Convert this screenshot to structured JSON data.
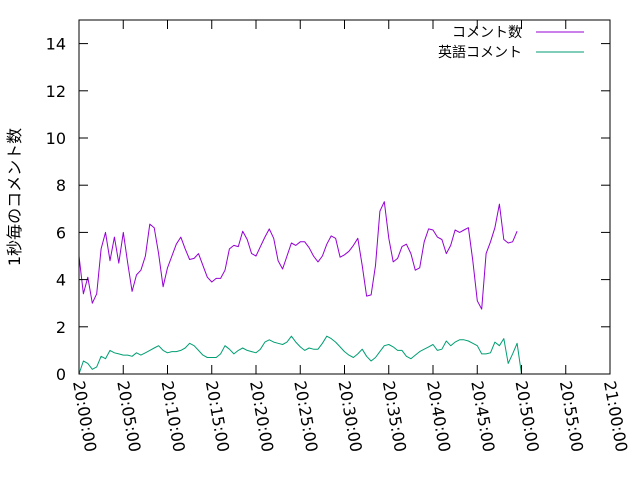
{
  "chart_data": {
    "type": "line",
    "title": "",
    "xlabel": "",
    "ylabel": "1秒毎のコメント数",
    "xlim": [
      "20:00:00",
      "21:00:00"
    ],
    "ylim": [
      0,
      15
    ],
    "x_ticks": [
      "20:00:00",
      "20:05:00",
      "20:10:00",
      "20:15:00",
      "20:20:00",
      "20:25:00",
      "20:30:00",
      "20:35:00",
      "20:40:00",
      "20:45:00",
      "20:50:00",
      "20:55:00",
      "21:00:00"
    ],
    "y_ticks": [
      0,
      2,
      4,
      6,
      8,
      10,
      12,
      14
    ],
    "y_tick_labels": [
      "0",
      "2",
      "4",
      "6",
      "8",
      "10",
      "12",
      "14"
    ],
    "grid": false,
    "legend_position": "top-right",
    "x_interval_seconds": 30,
    "series": [
      {
        "name": "コメント数",
        "color": "#9400d3",
        "values": [
          5.0,
          3.4,
          4.1,
          3.0,
          3.4,
          5.3,
          6.0,
          4.8,
          5.8,
          4.7,
          6.0,
          4.7,
          3.5,
          4.2,
          4.4,
          5.0,
          6.35,
          6.2,
          5.1,
          3.7,
          4.5,
          5.0,
          5.5,
          5.8,
          5.3,
          4.85,
          4.9,
          5.1,
          4.6,
          4.1,
          3.9,
          4.05,
          4.05,
          4.4,
          5.3,
          5.45,
          5.4,
          6.05,
          5.7,
          5.1,
          5.0,
          5.4,
          5.8,
          6.15,
          5.75,
          4.8,
          4.45,
          5.0,
          5.55,
          5.45,
          5.6,
          5.6,
          5.35,
          5.0,
          4.75,
          5.0,
          5.5,
          5.85,
          5.75,
          4.95,
          5.05,
          5.2,
          5.45,
          5.75,
          4.6,
          3.3,
          3.35,
          4.6,
          6.9,
          7.3,
          5.75,
          4.75,
          4.9,
          5.4,
          5.5,
          5.1,
          4.4,
          4.5,
          5.6,
          6.15,
          6.1,
          5.8,
          5.7,
          5.1,
          5.45,
          6.1,
          6.0,
          6.1,
          6.2,
          4.8,
          3.1,
          2.75,
          5.1,
          5.6,
          6.2,
          7.2,
          5.7,
          5.55,
          5.6,
          6.05
        ]
      },
      {
        "name": "英語コメント",
        "color": "#009e73",
        "values": [
          0.0,
          0.55,
          0.45,
          0.2,
          0.3,
          0.75,
          0.65,
          1.0,
          0.9,
          0.85,
          0.8,
          0.8,
          0.75,
          0.9,
          0.8,
          0.9,
          1.0,
          1.1,
          1.2,
          1.0,
          0.9,
          0.95,
          0.95,
          1.0,
          1.1,
          1.3,
          1.2,
          1.0,
          0.8,
          0.7,
          0.7,
          0.7,
          0.85,
          1.2,
          1.05,
          0.85,
          1.0,
          1.1,
          1.0,
          0.95,
          0.9,
          1.05,
          1.35,
          1.45,
          1.35,
          1.3,
          1.25,
          1.35,
          1.6,
          1.35,
          1.15,
          1.0,
          1.1,
          1.05,
          1.05,
          1.3,
          1.6,
          1.5,
          1.35,
          1.15,
          0.95,
          0.8,
          0.7,
          0.85,
          1.05,
          0.75,
          0.55,
          0.7,
          0.95,
          1.2,
          1.25,
          1.15,
          1.0,
          1.0,
          0.75,
          0.65,
          0.8,
          0.95,
          1.05,
          1.15,
          1.25,
          1.0,
          1.05,
          1.4,
          1.2,
          1.35,
          1.45,
          1.45,
          1.4,
          1.3,
          1.2,
          0.85,
          0.85,
          0.9,
          1.35,
          1.2,
          1.5,
          0.45,
          0.85,
          1.3,
          0.0
        ]
      }
    ]
  }
}
